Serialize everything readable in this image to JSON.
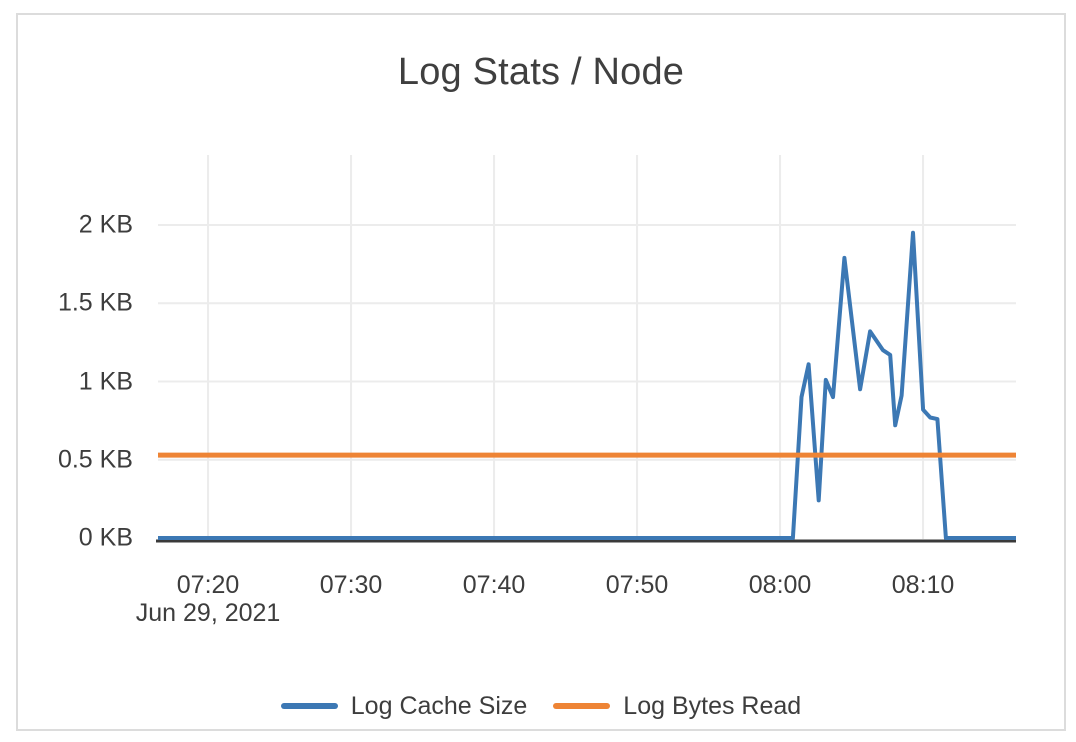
{
  "chart_data": {
    "type": "line",
    "title": "Log Stats / Node",
    "x_axis": {
      "date_label": "Jun 29, 2021",
      "unit": "time (HH:MM)",
      "range_minutes": [
        436.5,
        496.5
      ],
      "ticks": [
        {
          "label": "07:20",
          "minutes": 440
        },
        {
          "label": "07:30",
          "minutes": 450
        },
        {
          "label": "07:40",
          "minutes": 460
        },
        {
          "label": "07:50",
          "minutes": 470
        },
        {
          "label": "08:00",
          "minutes": 480
        },
        {
          "label": "08:10",
          "minutes": 490
        }
      ]
    },
    "y_axis": {
      "unit": "KB",
      "range_kb": [
        0,
        2.45
      ],
      "ticks": [
        {
          "label": "0 KB",
          "value": 0
        },
        {
          "label": "0.5 KB",
          "value": 0.5
        },
        {
          "label": "1 KB",
          "value": 1
        },
        {
          "label": "1.5 KB",
          "value": 1.5
        },
        {
          "label": "2 KB",
          "value": 2
        }
      ]
    },
    "grid": true,
    "legend_position": "bottom",
    "series": [
      {
        "name": "Log Cache Size",
        "color": "#3c78b4",
        "stroke_width": 4,
        "points_min_kb": [
          [
            436.5,
            0
          ],
          [
            480.9,
            0
          ],
          [
            481.5,
            0.9
          ],
          [
            482.0,
            1.11
          ],
          [
            482.7,
            0.24
          ],
          [
            483.2,
            1.01
          ],
          [
            483.7,
            0.9
          ],
          [
            484.5,
            1.79
          ],
          [
            485.6,
            0.95
          ],
          [
            486.3,
            1.32
          ],
          [
            487.2,
            1.2
          ],
          [
            487.7,
            1.17
          ],
          [
            488.05,
            0.72
          ],
          [
            488.5,
            0.91
          ],
          [
            489.3,
            1.95
          ],
          [
            490.0,
            0.82
          ],
          [
            490.5,
            0.77
          ],
          [
            491.0,
            0.76
          ],
          [
            491.6,
            0
          ],
          [
            496.5,
            0
          ]
        ]
      },
      {
        "name": "Log Bytes Read",
        "color": "#ee8435",
        "stroke_width": 5,
        "points_min_kb": [
          [
            436.5,
            0.53
          ],
          [
            496.5,
            0.53
          ]
        ]
      }
    ]
  },
  "style": {
    "grid_color": "#ececec",
    "axis_color": "#3a3a3a",
    "text_color": "#3f3f3f",
    "card_border_color": "#dcdcdc",
    "background": "#ffffff"
  }
}
